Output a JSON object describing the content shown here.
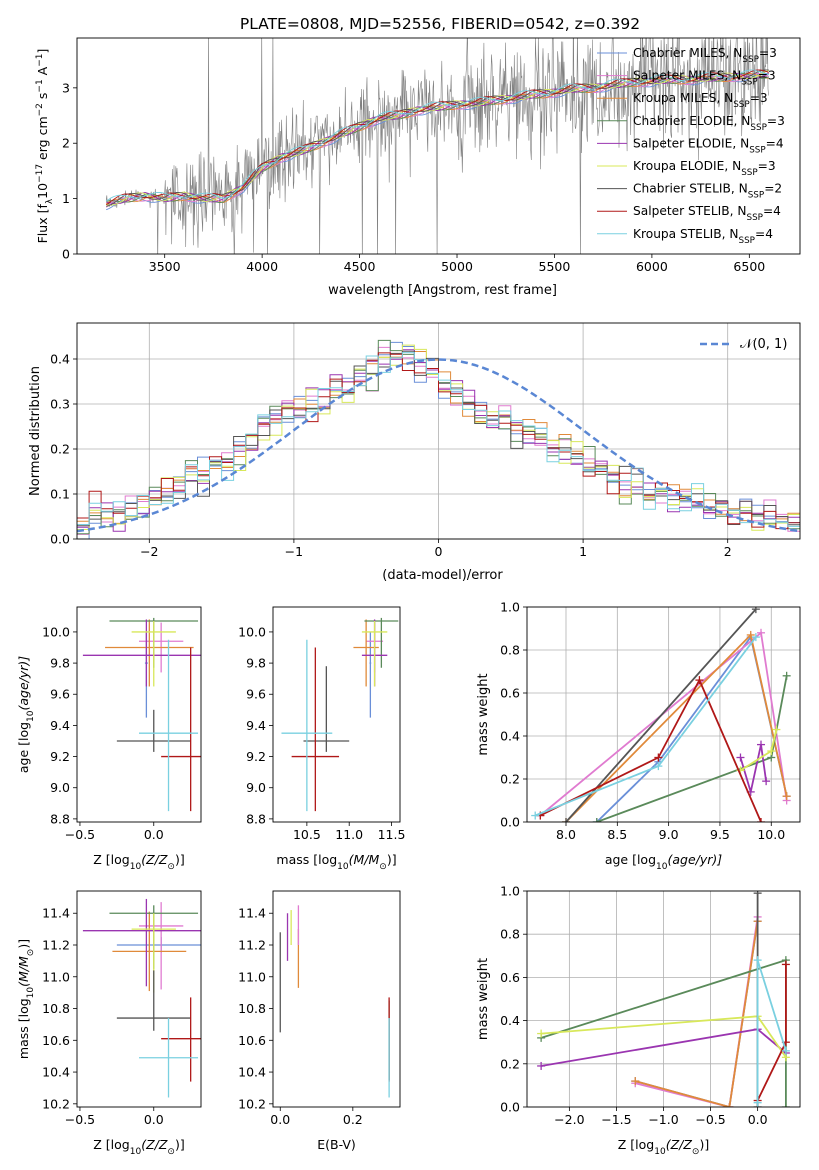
{
  "title": "PLATE=0808, MJD=52556, FIBERID=0542, z=0.392",
  "colors": {
    "Chabrier MILES": "#6a8fd8",
    "Salpeter MILES": "#e07bd0",
    "Kroupa MILES": "#e08a3a",
    "Chabrier ELODIE": "#5a8a5a",
    "Salpeter ELODIE": "#9a35b0",
    "Kroupa ELODIE": "#d8e85a",
    "Chabrier STELIB": "#555555",
    "Salpeter STELIB": "#b01818",
    "Kroupa STELIB": "#7ad0e0",
    "data": "#808080"
  },
  "chart_data": [
    {
      "id": "spectrum",
      "type": "line",
      "xlabel": "wavelength [Angstrom, rest frame]",
      "ylabel_main": "Flux [f",
      "ylabel_sub": "λ",
      "ylabel_mid": "10",
      "ylabel_sup1": "−17",
      "ylabel_tail": " erg cm",
      "ylabel_sup2": "−2",
      "ylabel_tail2": " s",
      "ylabel_sup3": "−1",
      "ylabel_tail3": " A",
      "ylabel_sup4": "−1",
      "ylabel_end": "]",
      "xlim": [
        3050,
        6760
      ],
      "ylim": [
        0,
        3.9
      ],
      "xticks": [
        3500,
        4000,
        4500,
        5000,
        5500,
        6000,
        6500
      ],
      "yticks": [
        0,
        1,
        2,
        3
      ],
      "model_curve": {
        "x": [
          3200,
          3300,
          3400,
          3500,
          3600,
          3700,
          3800,
          3900,
          4000,
          4100,
          4200,
          4300,
          4400,
          4500,
          4600,
          4700,
          4800,
          4900,
          5000,
          5100,
          5200,
          5300,
          5400,
          5500,
          5600,
          5700,
          5800,
          5900,
          6000,
          6100,
          6200,
          6300,
          6400,
          6500,
          6600
        ],
        "y": [
          0.9,
          1.0,
          1.05,
          1.0,
          1.05,
          1.0,
          1.0,
          1.2,
          1.55,
          1.75,
          1.85,
          2.0,
          2.15,
          2.3,
          2.45,
          2.5,
          2.6,
          2.65,
          2.7,
          2.72,
          2.78,
          2.82,
          2.88,
          2.92,
          2.98,
          3.0,
          3.05,
          3.1,
          3.12,
          3.15,
          3.15,
          3.18,
          3.2,
          3.22,
          3.25
        ]
      },
      "legend": [
        {
          "name": "Chabrier MILES, N",
          "sub": "SSP",
          "n": "=3"
        },
        {
          "name": "Salpeter MILES, N",
          "sub": "SSP",
          "n": "=3"
        },
        {
          "name": "Kroupa MILES, N",
          "sub": "SSP",
          "n": "=3"
        },
        {
          "name": "Chabrier ELODIE, N",
          "sub": "SSP",
          "n": "=3"
        },
        {
          "name": "Salpeter ELODIE, N",
          "sub": "SSP",
          "n": "=4"
        },
        {
          "name": "Kroupa ELODIE, N",
          "sub": "SSP",
          "n": "=3"
        },
        {
          "name": "Chabrier STELIB, N",
          "sub": "SSP",
          "n": "=2"
        },
        {
          "name": "Salpeter STELIB, N",
          "sub": "SSP",
          "n": "=4"
        },
        {
          "name": "Kroupa STELIB, N",
          "sub": "SSP",
          "n": "=4"
        }
      ]
    },
    {
      "id": "residuals",
      "type": "line",
      "xlabel": "(data-model)/error",
      "ylabel": "Normed distribution",
      "xlim": [
        -2.5,
        2.5
      ],
      "ylim": [
        0,
        0.48
      ],
      "xticks": [
        -2,
        -1,
        0,
        1,
        2
      ],
      "yticks": [
        0.0,
        0.1,
        0.2,
        0.3,
        0.4
      ],
      "grid": true,
      "legend_label": "𝒩(0, 1)",
      "legend_position": "top-right",
      "histogram_profile": [
        0.03,
        0.05,
        0.05,
        0.06,
        0.06,
        0.08,
        0.09,
        0.1,
        0.12,
        0.14,
        0.13,
        0.16,
        0.17,
        0.2,
        0.22,
        0.25,
        0.27,
        0.29,
        0.3,
        0.3,
        0.31,
        0.33,
        0.33,
        0.36,
        0.38,
        0.4,
        0.41,
        0.41,
        0.39,
        0.37,
        0.34,
        0.32,
        0.3,
        0.28,
        0.27,
        0.27,
        0.25,
        0.24,
        0.23,
        0.21,
        0.2,
        0.18,
        0.17,
        0.16,
        0.14,
        0.13,
        0.12,
        0.1,
        0.1,
        0.09,
        0.08,
        0.08,
        0.07,
        0.07,
        0.06,
        0.06,
        0.05,
        0.05,
        0.05,
        0.04
      ]
    },
    {
      "id": "age-vs-Z",
      "type": "scatter",
      "xlabel": "Z [log",
      "xlabel_sub": "10",
      "xlabel_tail": "(Z/Z",
      "xlabel_sub2": "⊙",
      "xlabel_end": ")]",
      "ylabel": "age  [log",
      "ylabel_sub": "10",
      "ylabel_tail": "(age/yr)]",
      "xlim": [
        -0.52,
        0.32
      ],
      "ylim": [
        8.78,
        10.16
      ],
      "xticks": [
        -0.5,
        0.0
      ],
      "xticklabels": [
        "−0.5",
        "0.0"
      ],
      "yticks": [
        8.8,
        9.0,
        9.2,
        9.4,
        9.6,
        9.8,
        10.0
      ],
      "points": [
        {
          "model": "Chabrier MILES",
          "x": -0.05,
          "y": 9.8,
          "xerr": 0.01,
          "yerr_lo": 0.35,
          "yerr_hi": 0.2
        },
        {
          "model": "Salpeter MILES",
          "x": 0.05,
          "y": 9.94,
          "xerr": 0.15,
          "yerr_lo": 0.2,
          "yerr_hi": 0.12
        },
        {
          "model": "Kroupa MILES",
          "x": -0.03,
          "y": 9.9,
          "xerr": 0.3,
          "yerr_lo": 0.25,
          "yerr_hi": 0.18
        },
        {
          "model": "Chabrier ELODIE",
          "x": 0.0,
          "y": 10.07,
          "xerr": 0.3,
          "yerr_lo": 0.3,
          "yerr_hi": 0.02
        },
        {
          "model": "Salpeter ELODIE",
          "x": -0.05,
          "y": 9.85,
          "xerr": 0.43,
          "yerr_lo": 0.2,
          "yerr_hi": 0.23
        },
        {
          "model": "Kroupa ELODIE",
          "x": 0.0,
          "y": 10.0,
          "xerr": 0.15,
          "yerr_lo": 0.35,
          "yerr_hi": 0.07
        },
        {
          "model": "Chabrier STELIB",
          "x": 0.0,
          "y": 9.3,
          "xerr": 0.25,
          "yerr_lo": 0.07,
          "yerr_hi": 0.2
        },
        {
          "model": "Salpeter STELIB",
          "x": 0.25,
          "y": 9.2,
          "xerr": 0.2,
          "yerr_lo": 0.35,
          "yerr_hi": 0.7
        },
        {
          "model": "Kroupa STELIB",
          "x": 0.1,
          "y": 9.35,
          "xerr": 0.2,
          "yerr_lo": 0.5,
          "yerr_hi": 0.6
        }
      ]
    },
    {
      "id": "age-vs-mass",
      "type": "scatter",
      "xlabel": "mass [log",
      "xlabel_sub": "10",
      "xlabel_tail": "(M/M",
      "xlabel_sub2": "⊙",
      "xlabel_end": ")]",
      "xlim": [
        10.1,
        11.6
      ],
      "ylim": [
        8.78,
        10.16
      ],
      "xticks": [
        10.5,
        11.0,
        11.5
      ],
      "yticks": [
        8.8,
        9.0,
        9.2,
        9.4,
        9.6,
        9.8,
        10.0
      ],
      "points": [
        {
          "model": "Chabrier MILES",
          "x": 11.25,
          "y": 9.8,
          "xerr": 0.01,
          "yerr_lo": 0.35,
          "yerr_hi": 0.2
        },
        {
          "model": "Salpeter MILES",
          "x": 11.3,
          "y": 9.94,
          "xerr": 0.1,
          "yerr_lo": 0.2,
          "yerr_hi": 0.12
        },
        {
          "model": "Kroupa MILES",
          "x": 11.2,
          "y": 9.9,
          "xerr": 0.15,
          "yerr_lo": 0.25,
          "yerr_hi": 0.18
        },
        {
          "model": "Chabrier ELODIE",
          "x": 11.38,
          "y": 10.07,
          "xerr": 0.2,
          "yerr_lo": 0.3,
          "yerr_hi": 0.02
        },
        {
          "model": "Salpeter ELODIE",
          "x": 11.3,
          "y": 9.85,
          "xerr": 0.15,
          "yerr_lo": 0.2,
          "yerr_hi": 0.23
        },
        {
          "model": "Kroupa ELODIE",
          "x": 11.3,
          "y": 10.0,
          "xerr": 0.15,
          "yerr_lo": 0.35,
          "yerr_hi": 0.07
        },
        {
          "model": "Chabrier STELIB",
          "x": 10.73,
          "y": 9.3,
          "xerr": 0.27,
          "yerr_lo": 0.07,
          "yerr_hi": 0.48
        },
        {
          "model": "Salpeter STELIB",
          "x": 10.6,
          "y": 9.2,
          "xerr": 0.28,
          "yerr_lo": 0.35,
          "yerr_hi": 0.7
        },
        {
          "model": "Kroupa STELIB",
          "x": 10.5,
          "y": 9.35,
          "xerr": 0.3,
          "yerr_lo": 0.5,
          "yerr_hi": 0.6
        }
      ]
    },
    {
      "id": "weight-vs-age",
      "type": "line",
      "xlabel": "age  [log",
      "xlabel_sub": "10",
      "xlabel_tail": "(age/yr)]",
      "ylabel": "mass weight",
      "xlim": [
        7.62,
        10.28
      ],
      "ylim": [
        0,
        1.0
      ],
      "xticks": [
        8.0,
        8.5,
        9.0,
        9.5,
        10.0
      ],
      "yticks": [
        0.0,
        0.2,
        0.4,
        0.6,
        0.8,
        1.0
      ],
      "grid": true,
      "series": [
        {
          "model": "Chabrier MILES",
          "x": [
            8.3,
            8.9,
            9.8,
            10.15
          ],
          "y": [
            0.0,
            0.28,
            0.86,
            0.12
          ]
        },
        {
          "model": "Salpeter MILES",
          "x": [
            7.75,
            9.9,
            10.15
          ],
          "y": [
            0.03,
            0.88,
            0.1
          ]
        },
        {
          "model": "Kroupa MILES",
          "x": [
            8.0,
            9.8,
            10.15
          ],
          "y": [
            0.0,
            0.87,
            0.12
          ]
        },
        {
          "model": "Chabrier ELODIE",
          "x": [
            8.3,
            10.0,
            10.15
          ],
          "y": [
            0.0,
            0.3,
            0.68
          ]
        },
        {
          "model": "Salpeter ELODIE",
          "x": [
            9.7,
            9.8,
            9.9,
            9.95
          ],
          "y": [
            0.3,
            0.14,
            0.36,
            0.19
          ]
        },
        {
          "model": "Kroupa ELODIE",
          "x": [
            9.7,
            10.0,
            10.05
          ],
          "y": [
            0.24,
            0.33,
            0.43
          ]
        },
        {
          "model": "Chabrier STELIB",
          "x": [
            8.0,
            9.85
          ],
          "y": [
            0.0,
            0.99
          ]
        },
        {
          "model": "Salpeter STELIB",
          "x": [
            7.75,
            8.9,
            9.3,
            9.9
          ],
          "y": [
            0.03,
            0.3,
            0.66,
            0.0
          ]
        },
        {
          "model": "Kroupa STELIB",
          "x": [
            7.7,
            8.9,
            9.85
          ],
          "y": [
            0.03,
            0.26,
            0.86
          ]
        }
      ]
    },
    {
      "id": "mass-vs-Z",
      "type": "scatter",
      "xlabel": "Z [log",
      "xlabel_sub": "10",
      "xlabel_tail": "(Z/Z",
      "xlabel_sub2": "⊙",
      "xlabel_end": ")]",
      "ylabel": "mass [log",
      "ylabel_sub": "10",
      "ylabel_tail": "(M/M",
      "ylabel_sub2": "⊙",
      "ylabel_end": ")]",
      "xlim": [
        -0.52,
        0.32
      ],
      "ylim": [
        10.18,
        11.54
      ],
      "xticks": [
        -0.5,
        0.0
      ],
      "xticklabels": [
        "−0.5",
        "0.0"
      ],
      "yticks": [
        10.2,
        10.4,
        10.6,
        10.8,
        11.0,
        11.2,
        11.4
      ],
      "points": [
        {
          "model": "Chabrier MILES",
          "x": 0.05,
          "y": 11.2,
          "xerr": 0.3,
          "yerr_lo": 0.05,
          "yerr_hi": 0.05
        },
        {
          "model": "Salpeter MILES",
          "x": 0.05,
          "y": 11.32,
          "xerr": 0.15,
          "yerr_lo": 0.4,
          "yerr_hi": 0.15
        },
        {
          "model": "Kroupa MILES",
          "x": -0.03,
          "y": 11.16,
          "xerr": 0.25,
          "yerr_lo": 0.25,
          "yerr_hi": 0.25
        },
        {
          "model": "Chabrier ELODIE",
          "x": 0.0,
          "y": 11.4,
          "xerr": 0.3,
          "yerr_lo": 0.35,
          "yerr_hi": 0.05
        },
        {
          "model": "Salpeter ELODIE",
          "x": -0.05,
          "y": 11.29,
          "xerr": 0.43,
          "yerr_lo": 0.35,
          "yerr_hi": 0.2
        },
        {
          "model": "Kroupa ELODIE",
          "x": 0.0,
          "y": 11.3,
          "xerr": 0.15,
          "yerr_lo": 0.4,
          "yerr_hi": 0.1
        },
        {
          "model": "Chabrier STELIB",
          "x": 0.0,
          "y": 10.74,
          "xerr": 0.25,
          "yerr_lo": 0.08,
          "yerr_hi": 0.3
        },
        {
          "model": "Salpeter STELIB",
          "x": 0.25,
          "y": 10.61,
          "xerr": 0.2,
          "yerr_lo": 0.27,
          "yerr_hi": 0.26
        },
        {
          "model": "Kroupa STELIB",
          "x": 0.1,
          "y": 10.49,
          "xerr": 0.2,
          "yerr_lo": 0.25,
          "yerr_hi": 0.25
        }
      ]
    },
    {
      "id": "mass-vs-ebv",
      "type": "scatter",
      "xlabel": "E(B-V)",
      "xlim": [
        -0.02,
        0.33
      ],
      "ylim": [
        10.18,
        11.54
      ],
      "xticks": [
        0.0,
        0.2
      ],
      "yticks": [
        10.2,
        10.4,
        10.6,
        10.8,
        11.0,
        11.2,
        11.4
      ],
      "points": [
        {
          "model": "Chabrier STELIB",
          "x": 0.0,
          "y": 10.95,
          "yerr_lo": 0.3,
          "yerr_hi": 0.33
        },
        {
          "model": "Salpeter ELODIE",
          "x": 0.02,
          "y": 11.3,
          "yerr_lo": 0.2,
          "yerr_hi": 0.1
        },
        {
          "model": "Kroupa ELODIE",
          "x": 0.03,
          "y": 11.3,
          "yerr_lo": 0.1,
          "yerr_hi": 0.12
        },
        {
          "model": "Kroupa MILES",
          "x": 0.05,
          "y": 11.2,
          "yerr_lo": 0.27,
          "yerr_hi": 0.1
        },
        {
          "model": "Salpeter MILES",
          "x": 0.05,
          "y": 11.3,
          "yerr_lo": 0.1,
          "yerr_hi": 0.15
        },
        {
          "model": "Chabrier ELODIE",
          "x": 0.3,
          "y": 10.6,
          "yerr_lo": 0.25,
          "yerr_hi": 0.25
        },
        {
          "model": "Salpeter STELIB",
          "x": 0.3,
          "y": 10.61,
          "yerr_lo": 0.27,
          "yerr_hi": 0.26
        },
        {
          "model": "Kroupa STELIB",
          "x": 0.3,
          "y": 10.49,
          "yerr_lo": 0.25,
          "yerr_hi": 0.25
        }
      ]
    },
    {
      "id": "weight-vs-Z",
      "type": "line",
      "xlabel": "Z [log",
      "xlabel_sub": "10",
      "xlabel_tail": "(Z/Z",
      "xlabel_sub2": "⊙",
      "xlabel_end": ")]",
      "ylabel": "mass weight",
      "xlim": [
        -2.45,
        0.45
      ],
      "ylim": [
        0,
        1.0
      ],
      "xticks": [
        -2.0,
        -1.5,
        -1.0,
        -0.5,
        0.0,
        0.5
      ],
      "xticklabels": [
        "−2.0",
        "−1.5",
        "−1.0",
        "−0.5",
        "0.0",
        "0.5"
      ],
      "yticks": [
        0.0,
        0.2,
        0.4,
        0.6,
        0.8,
        1.0
      ],
      "grid": true,
      "series": [
        {
          "model": "Chabrier MILES",
          "x": [
            -1.3,
            -0.3,
            0.0
          ],
          "y": [
            0.12,
            0.0,
            0.86
          ]
        },
        {
          "model": "Salpeter MILES",
          "x": [
            -1.3,
            -0.3,
            0.0
          ],
          "y": [
            0.11,
            0.0,
            0.88
          ]
        },
        {
          "model": "Kroupa MILES",
          "x": [
            -1.3,
            -0.3,
            0.0
          ],
          "y": [
            0.12,
            0.0,
            0.86
          ]
        },
        {
          "model": "Chabrier ELODIE",
          "x": [
            -2.3,
            0.3,
            0.3
          ],
          "y": [
            0.32,
            0.68,
            0.0
          ]
        },
        {
          "model": "Salpeter ELODIE",
          "x": [
            -2.3,
            0.0,
            0.3
          ],
          "y": [
            0.19,
            0.36,
            0.25
          ]
        },
        {
          "model": "Kroupa ELODIE",
          "x": [
            -2.3,
            0.0,
            0.3
          ],
          "y": [
            0.34,
            0.42,
            0.23
          ]
        },
        {
          "model": "Chabrier STELIB",
          "x": [
            0.0,
            0.0
          ],
          "y": [
            0.0,
            0.99
          ]
        },
        {
          "model": "Salpeter STELIB",
          "x": [
            0.0,
            0.3,
            0.3
          ],
          "y": [
            0.03,
            0.3,
            0.66
          ]
        },
        {
          "model": "Kroupa STELIB",
          "x": [
            0.0,
            0.0,
            0.3
          ],
          "y": [
            0.02,
            0.68,
            0.26
          ]
        }
      ]
    }
  ]
}
